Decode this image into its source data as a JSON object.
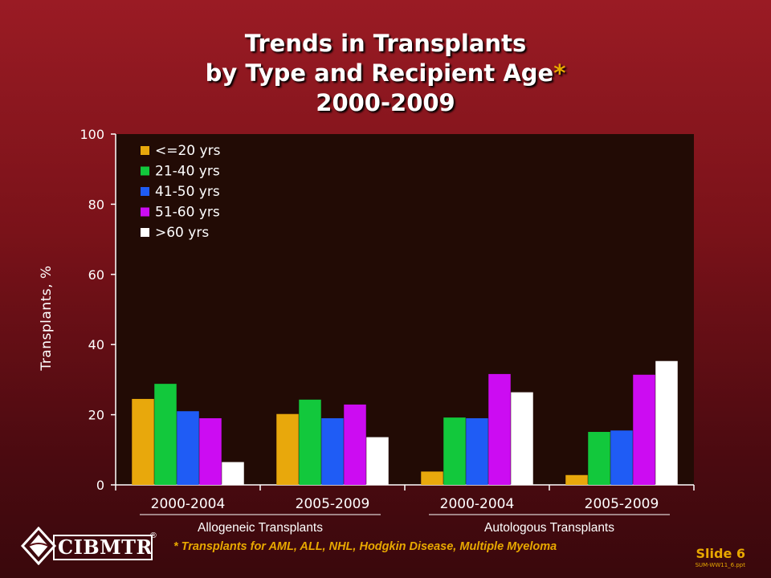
{
  "title": {
    "line1": "Trends in Transplants",
    "line2": "by Type and Recipient Age",
    "star": "*",
    "line3": "2000-2009"
  },
  "chart_data": {
    "type": "bar",
    "ylabel": "Transplants,  %",
    "ylim": [
      0,
      100
    ],
    "yticks": [
      "0",
      "20",
      "40",
      "60",
      "80",
      "100"
    ],
    "legend_position": "top-left",
    "categories": [
      "2000-2004",
      "2005-2009",
      "2000-2004",
      "2005-2009"
    ],
    "groups": [
      {
        "label": "Allogeneic Transplants",
        "categories": [
          0,
          1
        ]
      },
      {
        "label": "Autologous Transplants",
        "categories": [
          2,
          3
        ]
      }
    ],
    "series": [
      {
        "name": "<=20 yrs",
        "color": "#e8a80c",
        "values": [
          24.5,
          20.2,
          3.8,
          2.8
        ]
      },
      {
        "name": "21-40 yrs",
        "color": "#12c83c",
        "values": [
          28.8,
          24.3,
          19.2,
          15.1
        ]
      },
      {
        "name": "41-50 yrs",
        "color": "#1f5cf5",
        "values": [
          21.0,
          19.0,
          19.0,
          15.5
        ]
      },
      {
        "name": "51-60 yrs",
        "color": "#cc0cf2",
        "values": [
          19.0,
          22.9,
          31.6,
          31.4
        ]
      },
      {
        "name": ">60 yrs",
        "color": "#ffffff",
        "values": [
          6.5,
          13.6,
          26.4,
          35.3
        ]
      }
    ],
    "plot_background": "#220b05",
    "axis_color": "#ffffff"
  },
  "footnote": "* Transplants for AML, ALL, NHL, Hodgkin Disease, Multiple Myeloma",
  "logo_text": "CIBMTR",
  "logo_mark": "®",
  "slide_label": "Slide 6",
  "file_ref": "SUM-WW11_6.ppt"
}
